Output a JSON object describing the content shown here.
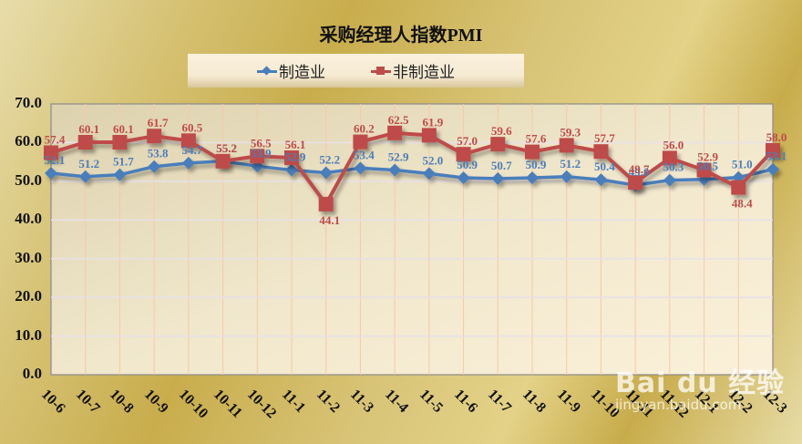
{
  "chart_data": {
    "type": "line",
    "title": "采购经理人指数PMI",
    "xlabel": "",
    "ylabel": "",
    "ylim": [
      0,
      70
    ],
    "yticks": [
      "0.0",
      "10.0",
      "20.0",
      "30.0",
      "40.0",
      "50.0",
      "60.0",
      "70.0"
    ],
    "grid": true,
    "legend_position": "top",
    "categories": [
      "10-6",
      "10-7",
      "10-8",
      "10-9",
      "10-10",
      "10-11",
      "10-12",
      "11-1",
      "11-2",
      "11-3",
      "11-4",
      "11-5",
      "11-6",
      "11-7",
      "11-8",
      "11-9",
      "11-10",
      "11-11",
      "11-12",
      "12-1",
      "12-2",
      "12-3"
    ],
    "series": [
      {
        "name": "制造业",
        "color": "#4a7ebb",
        "marker": "diamond",
        "values": [
          52.1,
          51.2,
          51.7,
          53.8,
          54.7,
          55.2,
          53.9,
          52.9,
          52.2,
          53.4,
          52.9,
          52.0,
          50.9,
          50.7,
          50.9,
          51.2,
          50.4,
          49.0,
          50.3,
          50.5,
          51.0,
          53.1
        ]
      },
      {
        "name": "非制造业",
        "color": "#be4b48",
        "marker": "square",
        "values": [
          57.4,
          60.1,
          60.1,
          61.7,
          60.5,
          55.2,
          56.5,
          56.1,
          44.1,
          60.2,
          62.5,
          61.9,
          57.0,
          59.6,
          57.6,
          59.3,
          57.7,
          49.7,
          56.0,
          52.9,
          48.4,
          58.0
        ]
      }
    ]
  },
  "watermark": {
    "main": "Bai du 经验",
    "sub": "jingyan.baidu.com"
  }
}
